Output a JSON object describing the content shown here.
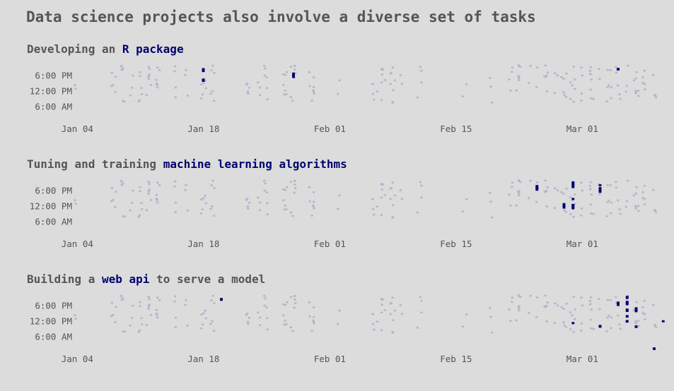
{
  "title": "Data science projects also involve a diverse set of tasks",
  "colors": {
    "background": "#dcdcdc",
    "text": "#555555",
    "muted_marks": "#b3b6cc",
    "highlight": "#000070"
  },
  "chart_data": [
    {
      "type": "scatter",
      "title_parts": [
        "Developing",
        "an",
        "R package"
      ],
      "highlight_label": "R package",
      "x_tick_labels": [
        "Jan 04",
        "Jan 18",
        "Feb 01",
        "Feb 15",
        "Mar 01"
      ],
      "y_tick_labels": [
        "6:00 PM",
        "12:00 PM",
        "6:00 AM"
      ],
      "xlim": [
        "2021-01-03",
        "2021-03-09"
      ],
      "ylim_hours": [
        24,
        0
      ],
      "highlight_points": [
        {
          "date": "2021-01-17",
          "hours": [
            20.5,
            20.2,
            20.0,
            19.8,
            16.5,
            16.3,
            16.0
          ]
        },
        {
          "date": "2021-01-27",
          "hours": [
            18.8,
            18.5,
            18.2,
            18.0,
            17.8,
            17.5
          ]
        },
        {
          "date": "2021-03-04",
          "hours": [
            20.6,
            20.4
          ]
        }
      ]
    },
    {
      "type": "scatter",
      "title_parts": [
        "Tuning",
        "and",
        "training",
        "machine",
        "learning",
        "algorithms"
      ],
      "highlight_label": "machine learning algorithms",
      "x_tick_labels": [
        "Jan 04",
        "Jan 18",
        "Feb 01",
        "Feb 15",
        "Mar 01"
      ],
      "y_tick_labels": [
        "6:00 PM",
        "12:00 PM",
        "6:00 AM"
      ],
      "xlim": [
        "2021-01-03",
        "2021-03-09"
      ],
      "ylim_hours": [
        24,
        0
      ],
      "highlight_points": [
        {
          "date": "2021-02-23",
          "hours": [
            19.8,
            19.5,
            19.2,
            19.0,
            18.7,
            18.4
          ]
        },
        {
          "date": "2021-02-26",
          "hours": [
            12.8,
            12.5,
            12.2,
            12.0,
            11.8,
            11.5
          ]
        },
        {
          "date": "2021-02-27",
          "hours": [
            21.2,
            21.0,
            20.7,
            20.4,
            20.2,
            19.9,
            19.6,
            19.4,
            14.8,
            12.5,
            12.2,
            12.0,
            11.8,
            11.5,
            11.2
          ]
        },
        {
          "date": "2021-03-02",
          "hours": [
            19.0,
            18.6,
            18.2,
            17.9,
            17.6,
            20.1
          ]
        }
      ]
    },
    {
      "type": "scatter",
      "title_parts": [
        "Building",
        "a",
        "web api",
        "to",
        "serve",
        "a",
        "model"
      ],
      "highlight_label": "web api",
      "x_tick_labels": [
        "Jan 04",
        "Jan 18",
        "Feb 01",
        "Feb 15",
        "Mar 01"
      ],
      "y_tick_labels": [
        "6:00 PM",
        "12:00 PM",
        "6:00 AM"
      ],
      "xlim": [
        "2021-01-03",
        "2021-03-09"
      ],
      "ylim_hours": [
        24,
        0
      ],
      "highlight_points": [
        {
          "date": "2021-01-19",
          "hours": [
            20.6,
            20.3
          ]
        },
        {
          "date": "2021-02-27",
          "hours": [
            11.3
          ]
        },
        {
          "date": "2021-03-02",
          "hours": [
            10.2,
            9.9
          ]
        },
        {
          "date": "2021-03-04",
          "hours": [
            19.2,
            18.9,
            18.6,
            18.3
          ]
        },
        {
          "date": "2021-03-05",
          "hours": [
            21.4,
            21.0,
            19.5,
            19.2,
            18.9,
            18.6,
            16.5,
            16.3,
            16.0,
            14.0,
            13.8,
            12.1,
            11.9
          ]
        },
        {
          "date": "2021-03-06",
          "hours": [
            17.0,
            16.8,
            16.5,
            16.2,
            15.9,
            10.0,
            9.8
          ]
        },
        {
          "date": "2021-03-08",
          "hours": [
            1.5,
            1.3
          ]
        },
        {
          "date": "2021-03-09",
          "hours": [
            12.0
          ]
        }
      ]
    }
  ]
}
